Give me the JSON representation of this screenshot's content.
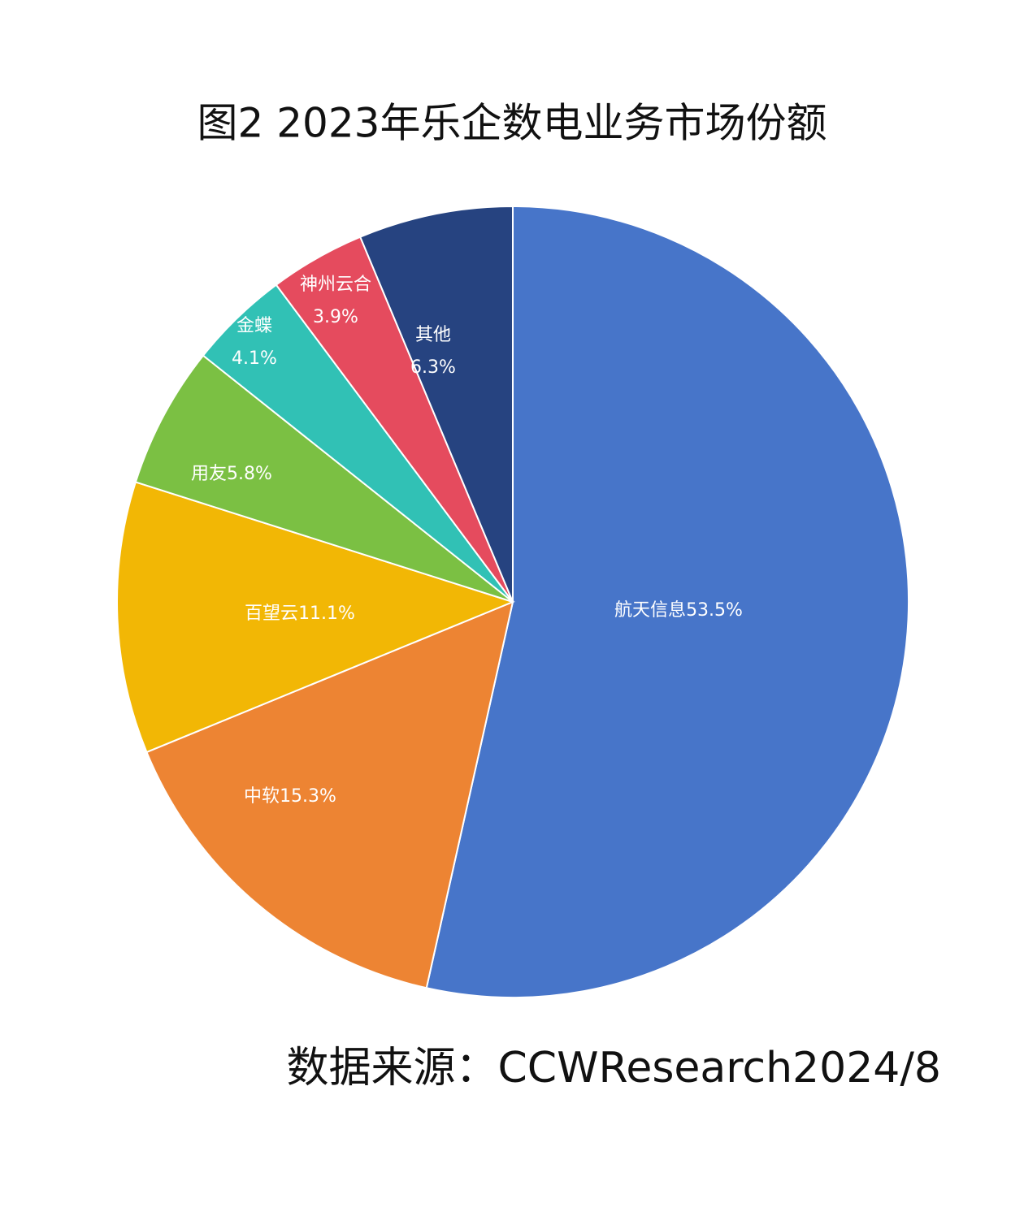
{
  "chart_data": {
    "type": "pie",
    "title": "图2 2023年乐企数电业务市场份额",
    "source": "数据来源：CCWResearch2024/8",
    "categories": [
      "航天信息",
      "中软",
      "百望云",
      "用友",
      "金蝶",
      "神州云合",
      "其他"
    ],
    "values": [
      53.5,
      15.3,
      11.1,
      5.8,
      4.1,
      3.9,
      6.3
    ],
    "value_labels": [
      "53.5%",
      "15.3%",
      "11.1%",
      "5.8%",
      "4.1%",
      "3.9%",
      "6.3%"
    ],
    "colors": [
      "#4775c9",
      "#ed8433",
      "#f2b705",
      "#7bc043",
      "#31c1b5",
      "#e54b5e",
      "#264380"
    ]
  }
}
